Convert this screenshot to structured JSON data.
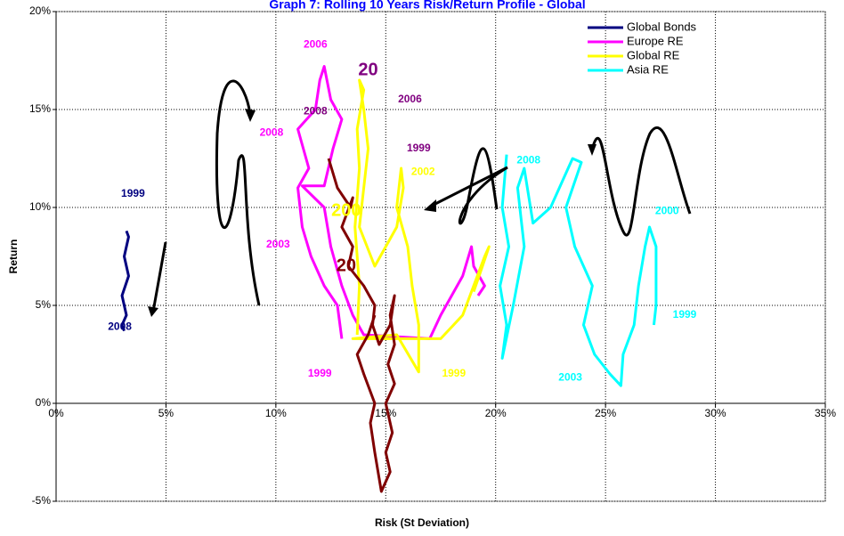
{
  "chart_data": {
    "type": "line",
    "title": "Graph 7: Rolling 10 Years Risk/Return Profile - Global",
    "x_label": "Risk (St Deviation)",
    "y_label": "Return",
    "xlim": [
      0,
      35
    ],
    "ylim": [
      -5,
      20
    ],
    "xticks": [
      {
        "value": 0,
        "label": "0%"
      },
      {
        "value": 5,
        "label": "5%"
      },
      {
        "value": 10,
        "label": "10%"
      },
      {
        "value": 15,
        "label": "15%"
      },
      {
        "value": 20,
        "label": "20%"
      },
      {
        "value": 25,
        "label": "25%"
      },
      {
        "value": 30,
        "label": "30%"
      },
      {
        "value": 35,
        "label": "35%"
      }
    ],
    "yticks": [
      {
        "value": -5,
        "label": "-5%"
      },
      {
        "value": 0,
        "label": "0%"
      },
      {
        "value": 5,
        "label": "5%"
      },
      {
        "value": 10,
        "label": "10%"
      },
      {
        "value": 15,
        "label": "15%"
      },
      {
        "value": 20,
        "label": "20%"
      }
    ],
    "grid": true,
    "legend": "top-right",
    "series": [
      {
        "name": "Global Bonds",
        "color": "#000080",
        "x": [
          3.2,
          3.3,
          3.1,
          3.3,
          3.0,
          3.2,
          3.0,
          3.1
        ],
        "values": [
          8.8,
          8.5,
          7.5,
          6.5,
          5.5,
          4.5,
          4.0,
          3.7
        ]
      },
      {
        "name": "Europe RE",
        "color": "#ff00ff",
        "x": [
          13.0,
          12.8,
          12.2,
          11.6,
          11.2,
          11.0,
          11.5,
          11.0,
          11.8,
          12.0,
          12.2,
          12.5,
          13.0,
          12.6,
          12.2,
          11.2,
          12.2,
          12.5,
          13.0,
          13.5,
          14.0,
          17.0,
          17.5,
          18.5,
          18.9,
          19.0,
          19.5,
          19.2
        ],
        "values": [
          3.3,
          5.0,
          6.0,
          7.5,
          9.0,
          11.0,
          12.0,
          14.0,
          15.0,
          16.5,
          17.2,
          15.5,
          14.5,
          13.0,
          11.1,
          11.1,
          10.0,
          8.0,
          6.0,
          4.5,
          3.5,
          3.3,
          4.5,
          6.5,
          8.0,
          7.0,
          6.0,
          5.5
        ]
      },
      {
        "name": "Global RE",
        "color": "#ffff00",
        "x": [
          13.7,
          13.8,
          13.6,
          13.8,
          13.7,
          14.0,
          13.8,
          14.0,
          14.2,
          14.0,
          13.8,
          14.5,
          15.5,
          15.8,
          15.7,
          15.5,
          16.0,
          16.2,
          16.5,
          16.5,
          15.5,
          13.5,
          17.5,
          18.5,
          19.0,
          19.5,
          19.7,
          19.4,
          19.0
        ],
        "values": [
          3.5,
          6.0,
          9.0,
          12.0,
          14.0,
          16.0,
          16.5,
          15.0,
          13.0,
          11.0,
          9.0,
          7.0,
          9.0,
          11.0,
          12.0,
          10.0,
          8.0,
          6.0,
          4.0,
          1.6,
          3.5,
          3.3,
          3.3,
          4.5,
          6.0,
          7.5,
          8.0,
          7.0,
          5.7
        ]
      },
      {
        "color": "#800000",
        "x": [
          12.4,
          12.8,
          13.4,
          13.5,
          13.0,
          13.5,
          13.3,
          14.0,
          14.5,
          14.4,
          14.7,
          15.2,
          15.4,
          15.2,
          15.4,
          15.1,
          15.4,
          15.0,
          15.3,
          15.0,
          15.2,
          14.8,
          14.5,
          14.3,
          14.5,
          14.0,
          13.7,
          14.2,
          14.5
        ],
        "values": [
          12.5,
          11.0,
          10.0,
          10.5,
          9.0,
          8.0,
          7.0,
          6.0,
          5.0,
          4.0,
          3.0,
          4.0,
          5.5,
          4.5,
          3.0,
          2.0,
          1.0,
          0.0,
          -1.5,
          -2.5,
          -3.5,
          -4.5,
          -2.5,
          -1.0,
          0.0,
          1.5,
          2.5,
          3.5,
          4.5
        ]
      },
      {
        "name": "Asia RE",
        "color": "#00ffff",
        "x": [
          20.5,
          20.3,
          20.6,
          20.2,
          20.5,
          20.3,
          20.8,
          21.3,
          21.0,
          21.3,
          21.7,
          22.5,
          23.5,
          23.9,
          23.2,
          23.6,
          24.0,
          24.4,
          24.0,
          24.5,
          25.2,
          25.7,
          25.8,
          26.3,
          26.5,
          26.8,
          27.0,
          27.3,
          27.3,
          27.2
        ],
        "values": [
          12.7,
          10.0,
          8.0,
          6.0,
          4.0,
          2.3,
          5.0,
          8.0,
          11.0,
          12.0,
          9.2,
          10.0,
          12.5,
          12.3,
          10.0,
          8.0,
          7.0,
          6.0,
          4.0,
          2.5,
          1.5,
          0.9,
          2.5,
          4.0,
          6.0,
          8.0,
          9.0,
          8.0,
          5.0,
          4.0
        ]
      }
    ],
    "annotations": [
      {
        "text": "1999",
        "x": 3.5,
        "y": 10.7,
        "color": "#000080"
      },
      {
        "text": "2008",
        "x": 2.9,
        "y": 3.9,
        "color": "#000080"
      },
      {
        "text": "2006",
        "x": 11.8,
        "y": 18.3,
        "color": "#ff00ff"
      },
      {
        "text": "2008",
        "x": 9.8,
        "y": 13.8,
        "color": "#ff00ff"
      },
      {
        "text": "2003",
        "x": 10.1,
        "y": 8.1,
        "color": "#ff00ff"
      },
      {
        "text": "1999",
        "x": 12.0,
        "y": 1.5,
        "color": "#ff00ff"
      },
      {
        "text": "2008",
        "x": 11.8,
        "y": 14.9,
        "color": "#800080"
      },
      {
        "text": "20",
        "x": 14.2,
        "y": 17.0,
        "color": "#800080"
      },
      {
        "text": "2006",
        "x": 16.1,
        "y": 15.5,
        "color": "#800080"
      },
      {
        "text": "1999",
        "x": 16.5,
        "y": 13.0,
        "color": "#800080"
      },
      {
        "text": "2002",
        "x": 16.7,
        "y": 11.8,
        "color": "#ffff00"
      },
      {
        "text": "200",
        "x": 13.2,
        "y": 9.8,
        "color": "#ffff00"
      },
      {
        "text": "20",
        "x": 13.2,
        "y": 7.0,
        "color": "#800000"
      },
      {
        "text": "1999",
        "x": 18.1,
        "y": 1.5,
        "color": "#ffff00"
      },
      {
        "text": "2008",
        "x": 21.5,
        "y": 12.4,
        "color": "#00ffff"
      },
      {
        "text": "2000",
        "x": 27.8,
        "y": 9.8,
        "color": "#00ffff"
      },
      {
        "text": "1999",
        "x": 28.6,
        "y": 4.5,
        "color": "#00ffff"
      },
      {
        "text": "2003",
        "x": 23.4,
        "y": 1.3,
        "color": "#00ffff"
      }
    ]
  }
}
